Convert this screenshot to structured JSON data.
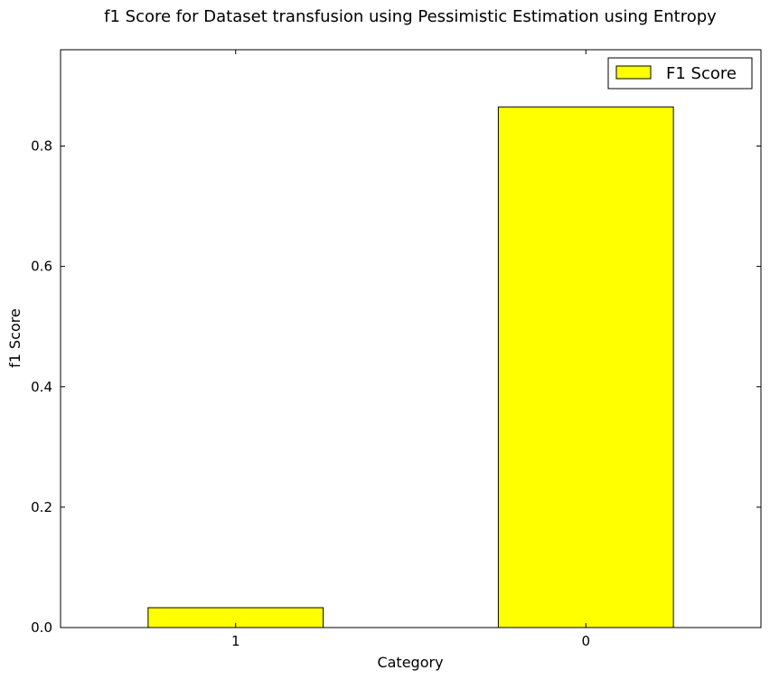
{
  "chart_data": {
    "type": "bar",
    "title": "f1 Score for Dataset transfusion using Pessimistic Estimation using Entropy",
    "xlabel": "Category",
    "ylabel": "f1 Score",
    "categories": [
      "1",
      "0"
    ],
    "series": [
      {
        "name": "F1 Score",
        "values": [
          0.033,
          0.865
        ],
        "color": "#ffff00"
      }
    ],
    "ylim": [
      0,
      0.96
    ],
    "yticks": [
      0.0,
      0.2,
      0.4,
      0.6,
      0.8
    ],
    "ytick_labels": [
      "0.0",
      "0.2",
      "0.4",
      "0.6",
      "0.8"
    ],
    "grid": false,
    "legend_position": "top-right"
  }
}
